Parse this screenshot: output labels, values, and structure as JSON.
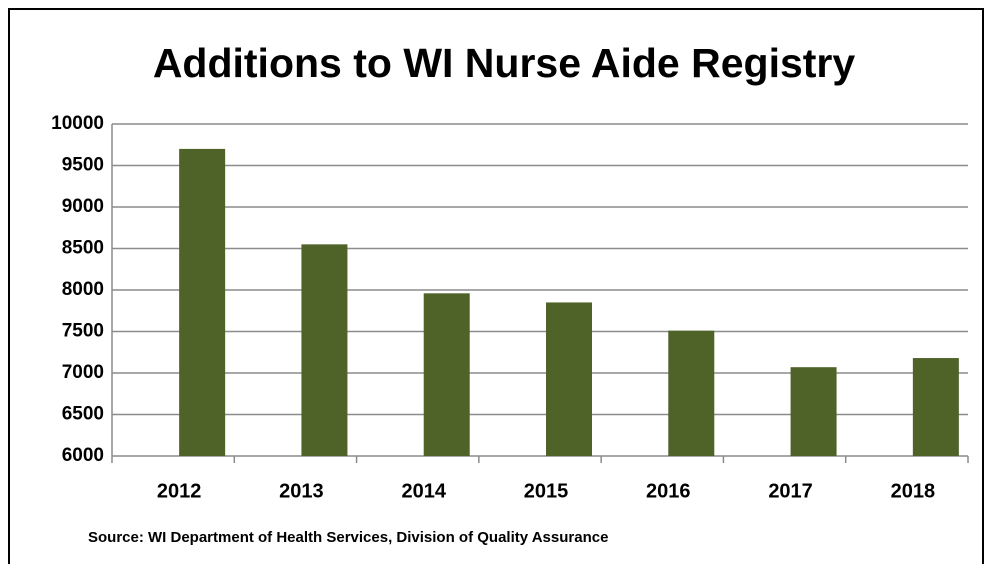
{
  "chart_data": {
    "type": "bar",
    "title": "Additions to WI Nurse Aide Registry",
    "source": "Source: WI Department of Health Services, Division of Quality Assurance",
    "categories": [
      "2012",
      "2013",
      "2014",
      "2015",
      "2016",
      "2017",
      "2018"
    ],
    "values": [
      9700,
      8550,
      7960,
      7850,
      7510,
      7070,
      7180
    ],
    "color": "#4f6228",
    "ylim": [
      6000,
      10000
    ],
    "yticks": [
      6000,
      6500,
      7000,
      7500,
      8000,
      8500,
      9000,
      9500,
      10000
    ],
    "grid": true
  }
}
